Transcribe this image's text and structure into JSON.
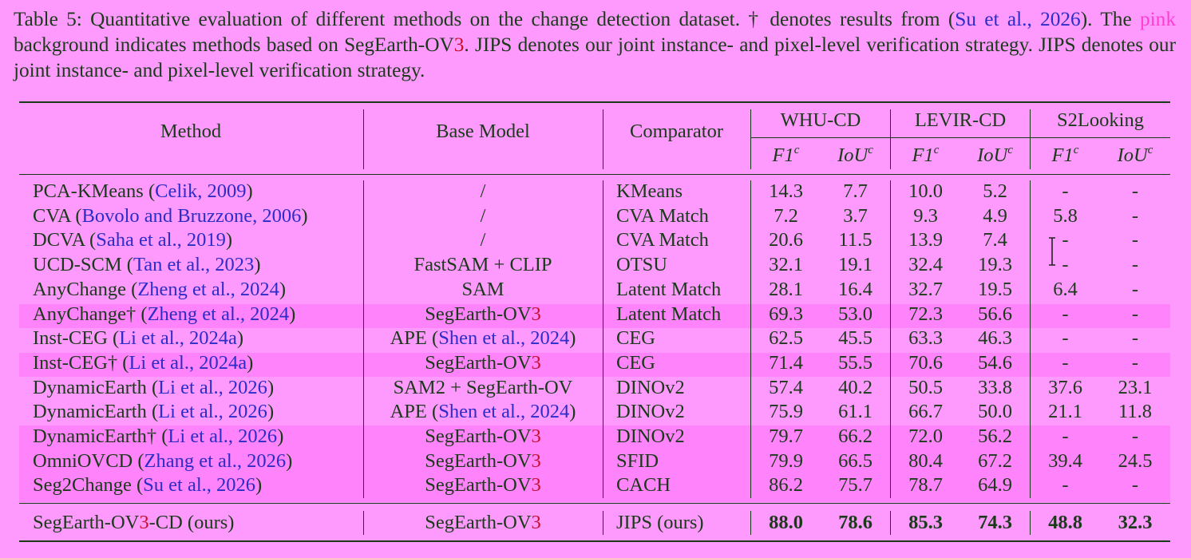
{
  "caption": {
    "prefix": "Table 5: Quantitative evaluation of different methods on the change detection dataset. † denotes results from (",
    "cite": "Su et al., 2026",
    "after_cite": "). The ",
    "pink_word": "pink",
    "after_pink": " background indicates methods based on SegEarth-OV",
    "model_num": "3",
    "rest": ". JIPS denotes our joint instance- and pixel-level verification strategy. JIPS denotes our joint instance- and pixel-level verification strategy."
  },
  "header": {
    "method": "Method",
    "base_model": "Base Model",
    "comparator": "Comparator",
    "datasets": [
      "WHU-CD",
      "LEVIR-CD",
      "S2Looking"
    ],
    "metric_f1": "F1",
    "metric_iou": "IoU",
    "metric_sup": "c"
  },
  "rows": [
    {
      "name": "PCA-KMeans",
      "cite": "Celik, 2009",
      "dagger": false,
      "base": "/",
      "base_cite": "",
      "base_ov3": false,
      "comparator": "KMeans",
      "vals": [
        "14.3",
        "7.7",
        "10.0",
        "5.2",
        "-",
        "-"
      ],
      "highlight": false
    },
    {
      "name": "CVA",
      "cite": "Bovolo and Bruzzone, 2006",
      "dagger": false,
      "base": "/",
      "base_cite": "",
      "base_ov3": false,
      "comparator": "CVA Match",
      "vals": [
        "7.2",
        "3.7",
        "9.3",
        "4.9",
        "5.8",
        "-"
      ],
      "highlight": false
    },
    {
      "name": "DCVA",
      "cite": "Saha et al., 2019",
      "dagger": false,
      "base": "/",
      "base_cite": "",
      "base_ov3": false,
      "comparator": "CVA Match",
      "vals": [
        "20.6",
        "11.5",
        "13.9",
        "7.4",
        "-",
        "-"
      ],
      "highlight": false
    },
    {
      "name": "UCD-SCM",
      "cite": "Tan et al., 2023",
      "dagger": false,
      "base": "FastSAM + CLIP",
      "base_cite": "",
      "base_ov3": false,
      "comparator": "OTSU",
      "vals": [
        "32.1",
        "19.1",
        "32.4",
        "19.3",
        "-",
        "-"
      ],
      "highlight": false
    },
    {
      "name": "AnyChange",
      "cite": "Zheng et al., 2024",
      "dagger": false,
      "base": "SAM",
      "base_cite": "",
      "base_ov3": false,
      "comparator": "Latent Match",
      "vals": [
        "28.1",
        "16.4",
        "32.7",
        "19.5",
        "6.4",
        "-"
      ],
      "highlight": false
    },
    {
      "name": "AnyChange†",
      "cite": "Zheng et al., 2024",
      "dagger": true,
      "base": "SegEarth-OV",
      "base_cite": "",
      "base_ov3": true,
      "comparator": "Latent Match",
      "vals": [
        "69.3",
        "53.0",
        "72.3",
        "56.6",
        "-",
        "-"
      ],
      "highlight": true
    },
    {
      "name": "Inst-CEG",
      "cite": "Li et al., 2024a",
      "dagger": false,
      "base": "APE",
      "base_cite": "Shen et al., 2024",
      "base_ov3": false,
      "comparator": "CEG",
      "vals": [
        "62.5",
        "45.5",
        "63.3",
        "46.3",
        "-",
        "-"
      ],
      "highlight": false
    },
    {
      "name": "Inst-CEG†",
      "cite": "Li et al., 2024a",
      "dagger": true,
      "base": "SegEarth-OV",
      "base_cite": "",
      "base_ov3": true,
      "comparator": "CEG",
      "vals": [
        "71.4",
        "55.5",
        "70.6",
        "54.6",
        "-",
        "-"
      ],
      "highlight": true
    },
    {
      "name": "DynamicEarth",
      "cite": "Li et al., 2026",
      "dagger": false,
      "base": "SAM2 + SegEarth-OV",
      "base_cite": "",
      "base_ov3": false,
      "comparator": "DINOv2",
      "vals": [
        "57.4",
        "40.2",
        "50.5",
        "33.8",
        "37.6",
        "23.1"
      ],
      "highlight": false
    },
    {
      "name": "DynamicEarth",
      "cite": "Li et al., 2026",
      "dagger": false,
      "base": "APE",
      "base_cite": "Shen et al., 2024",
      "base_ov3": false,
      "comparator": "DINOv2",
      "vals": [
        "75.9",
        "61.1",
        "66.7",
        "50.0",
        "21.1",
        "11.8"
      ],
      "highlight": false
    },
    {
      "name": "DynamicEarth†",
      "cite": "Li et al., 2026",
      "dagger": true,
      "base": "SegEarth-OV",
      "base_cite": "",
      "base_ov3": true,
      "comparator": "DINOv2",
      "vals": [
        "79.7",
        "66.2",
        "72.0",
        "56.2",
        "-",
        "-"
      ],
      "highlight": true
    },
    {
      "name": "OmniOVCD",
      "cite": "Zhang et al., 2026",
      "dagger": false,
      "base": "SegEarth-OV",
      "base_cite": "",
      "base_ov3": true,
      "comparator": "SFID",
      "vals": [
        "79.9",
        "66.5",
        "80.4",
        "67.2",
        "39.4",
        "24.5"
      ],
      "highlight": true
    },
    {
      "name": "Seg2Change",
      "cite": "Su et al., 2026",
      "dagger": false,
      "base": "SegEarth-OV",
      "base_cite": "",
      "base_ov3": true,
      "comparator": "CACH",
      "vals": [
        "86.2",
        "75.7",
        "78.7",
        "64.9",
        "-",
        "-"
      ],
      "highlight": true
    }
  ],
  "ours": {
    "name_prefix": "SegEarth-OV",
    "name_num": "3",
    "name_suffix": "-CD (ours)",
    "base": "SegEarth-OV",
    "base_num": "3",
    "comparator": "JIPS (ours)",
    "vals": [
      "88.0",
      "78.6",
      "85.3",
      "74.3",
      "48.8",
      "32.3"
    ]
  },
  "colors": {
    "background": "#fe9afe",
    "row_highlight": "#ff83fa",
    "text": "#1a3a1a",
    "link": "#2c2cc8",
    "pink_word": "#ff3dd0",
    "model_num": "#c8102e"
  }
}
